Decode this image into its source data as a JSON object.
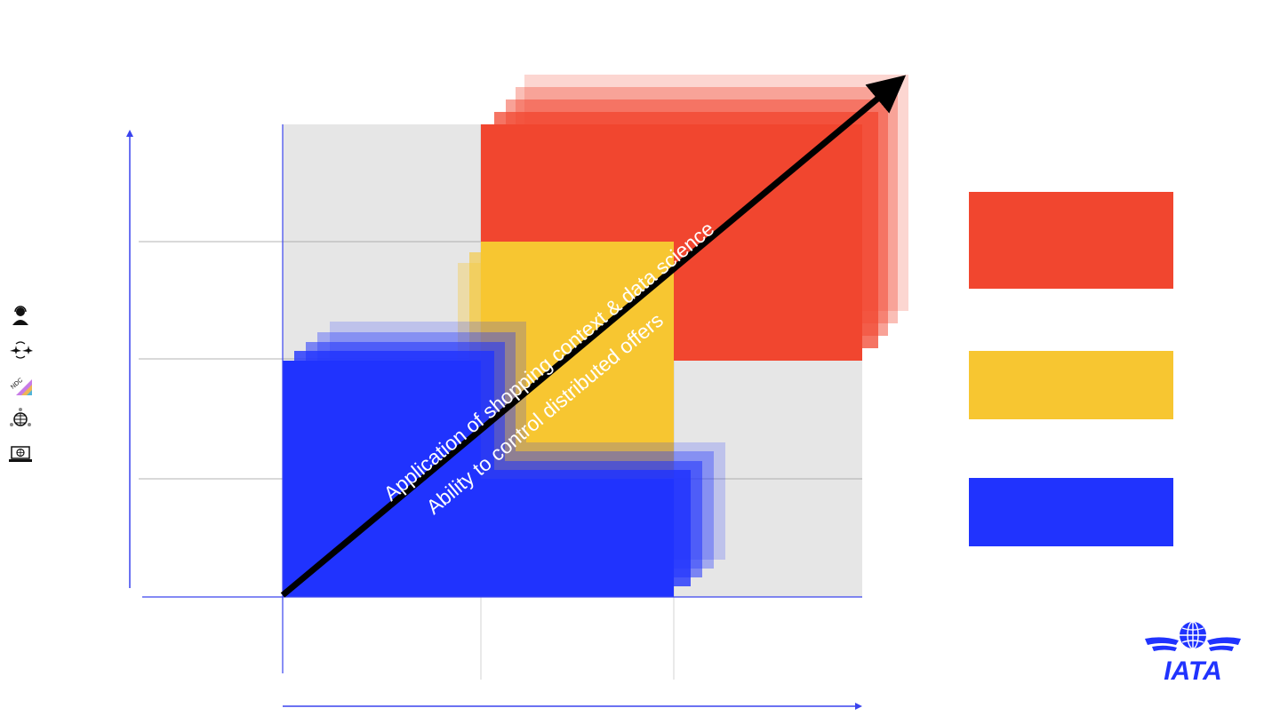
{
  "diagram": {
    "arrow_label_top": "Application of shopping context & data science",
    "arrow_label_bottom": "Ability to control distributed offers"
  },
  "colors": {
    "red": "#f1462f",
    "yellow": "#f7c631",
    "blue": "#2033fe",
    "grid_bg": "#e6e6e6",
    "axis": "#3a44ee",
    "diagonal": "#000000"
  },
  "legend": [
    {
      "name": "legend-red",
      "color": "#f1462f"
    },
    {
      "name": "legend-yellow",
      "color": "#f7c631"
    },
    {
      "name": "legend-blue",
      "color": "#2033fe"
    }
  ],
  "side_icons": [
    "agent-headset-icon",
    "airline-exchange-icon",
    "ndc-icon",
    "network-globe-icon",
    "laptop-globe-icon"
  ],
  "logo": {
    "text": "IATA",
    "icon": "iata-globe-icon"
  }
}
